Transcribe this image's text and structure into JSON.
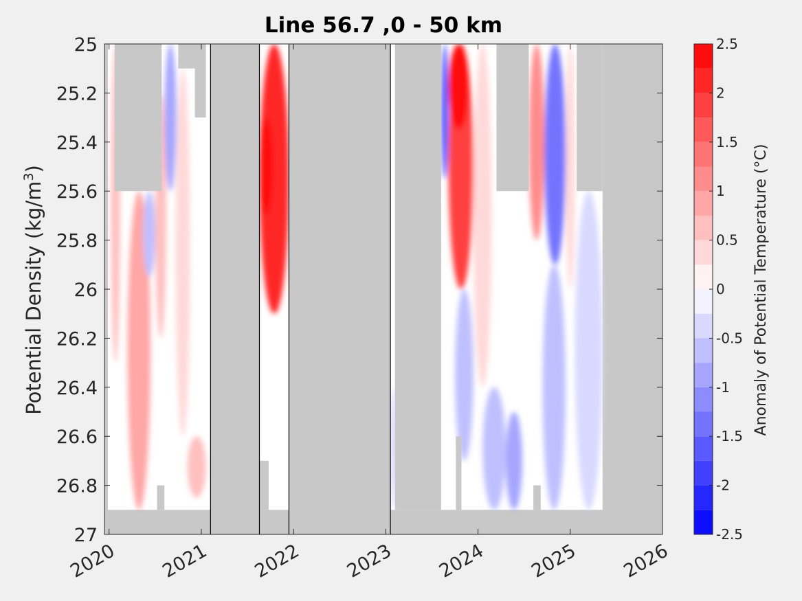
{
  "chart_data": {
    "type": "heatmap",
    "title": "Line 56.7 ,0 - 50 km",
    "ylabel": "Potential Density (kg/m",
    "ylabel_superscript": "3",
    "ylabel_close": ")",
    "xlim": [
      2019.95,
      2026.0
    ],
    "ylim": [
      25.0,
      27.0
    ],
    "y_reversed": true,
    "x_ticks": [
      2020,
      2021,
      2022,
      2023,
      2024,
      2025,
      2026
    ],
    "x_tick_labels": [
      "2020",
      "2021",
      "2022",
      "2023",
      "2024",
      "2025",
      "2026"
    ],
    "y_ticks": [
      25,
      25.2,
      25.4,
      25.6,
      25.8,
      26,
      26.2,
      26.4,
      26.6,
      26.8,
      27
    ],
    "y_tick_labels": [
      "25",
      "25.2",
      "25.4",
      "25.6",
      "25.8",
      "26",
      "26.2",
      "26.4",
      "26.6",
      "26.8",
      "27"
    ],
    "colorbar": {
      "label": "Anomaly of Potential Temperature (°C)",
      "range": [
        -2.5,
        2.5
      ],
      "levels": 20,
      "ticks": [
        -2.5,
        -2,
        -1.5,
        -1,
        -0.5,
        0,
        0.5,
        1,
        1.5,
        2,
        2.5
      ],
      "tick_labels": [
        "-2.5",
        "-2",
        "-1.5",
        "-1",
        "-0.5",
        "0",
        "0.5",
        "1",
        "1.5",
        "2",
        "2.5"
      ],
      "low_color": "#0000ff",
      "mid_color": "#ffffff",
      "high_color": "#ff0000"
    },
    "no_data_color": "#c8c8c8",
    "plot_background": "#ffffff",
    "no_data_periods": [
      [
        2021.1,
        2021.63
      ],
      [
        2021.95,
        2023.05
      ]
    ],
    "survey_lines": [
      2021.1,
      2021.63,
      2021.95,
      2023.05
    ],
    "anomaly_features": [
      {
        "x0": 2020.02,
        "x1": 2020.12,
        "y0": 25.0,
        "y1": 26.3,
        "value": 0.7
      },
      {
        "x0": 2020.2,
        "x1": 2020.45,
        "y0": 25.6,
        "y1": 26.9,
        "value": 0.8
      },
      {
        "x0": 2020.37,
        "x1": 2020.5,
        "y0": 25.6,
        "y1": 25.95,
        "value": -0.6
      },
      {
        "x0": 2020.5,
        "x1": 2020.62,
        "y0": 25.2,
        "y1": 26.2,
        "value": 0.5
      },
      {
        "x0": 2020.6,
        "x1": 2020.73,
        "y0": 25.0,
        "y1": 25.6,
        "value": -0.9
      },
      {
        "x0": 2020.72,
        "x1": 2020.88,
        "y0": 25.1,
        "y1": 26.6,
        "value": 0.4
      },
      {
        "x0": 2020.85,
        "x1": 2021.05,
        "y0": 26.6,
        "y1": 26.85,
        "value": 0.6
      },
      {
        "x0": 2021.63,
        "x1": 2021.95,
        "y0": 25.0,
        "y1": 26.1,
        "value": 2.0
      },
      {
        "x0": 2021.63,
        "x1": 2021.78,
        "y0": 25.3,
        "y1": 25.7,
        "value": 2.4
      },
      {
        "x0": 2023.05,
        "x1": 2023.12,
        "y0": 26.4,
        "y1": 26.9,
        "value": -0.5
      },
      {
        "x0": 2023.6,
        "x1": 2023.68,
        "y0": 25.0,
        "y1": 25.55,
        "value": -1.6
      },
      {
        "x0": 2023.68,
        "x1": 2023.95,
        "y0": 25.0,
        "y1": 26.0,
        "value": 1.9
      },
      {
        "x0": 2023.68,
        "x1": 2023.9,
        "y0": 25.0,
        "y1": 25.35,
        "value": 2.4
      },
      {
        "x0": 2023.75,
        "x1": 2023.95,
        "y0": 26.0,
        "y1": 26.7,
        "value": -0.6
      },
      {
        "x0": 2023.95,
        "x1": 2024.15,
        "y0": 25.0,
        "y1": 26.4,
        "value": 0.4
      },
      {
        "x0": 2024.05,
        "x1": 2024.3,
        "y0": 26.4,
        "y1": 26.9,
        "value": -0.6
      },
      {
        "x0": 2024.3,
        "x1": 2024.48,
        "y0": 26.5,
        "y1": 26.9,
        "value": -1.0
      },
      {
        "x0": 2024.55,
        "x1": 2024.72,
        "y0": 25.0,
        "y1": 25.8,
        "value": 1.0
      },
      {
        "x0": 2024.72,
        "x1": 2024.95,
        "y0": 25.0,
        "y1": 25.9,
        "value": -1.3
      },
      {
        "x0": 2024.7,
        "x1": 2024.95,
        "y0": 25.9,
        "y1": 26.9,
        "value": -0.6
      },
      {
        "x0": 2024.95,
        "x1": 2025.05,
        "y0": 25.0,
        "y1": 26.0,
        "value": 0.4
      },
      {
        "x0": 2025.05,
        "x1": 2025.35,
        "y0": 25.6,
        "y1": 26.9,
        "value": -0.5
      }
    ],
    "no_data_regions": [
      {
        "x0": 2020.06,
        "x1": 2020.57,
        "y0": 25.0,
        "y1": 25.6
      },
      {
        "x0": 2020.75,
        "x1": 2020.98,
        "y0": 25.0,
        "y1": 25.1
      },
      {
        "x0": 2020.93,
        "x1": 2021.05,
        "y0": 25.0,
        "y1": 25.3
      },
      {
        "x0": 2023.1,
        "x1": 2023.6,
        "y0": 25.0,
        "y1": 26.9
      },
      {
        "x0": 2024.2,
        "x1": 2024.55,
        "y0": 25.0,
        "y1": 25.6
      },
      {
        "x0": 2025.07,
        "x1": 2025.35,
        "y0": 25.0,
        "y1": 25.6
      },
      {
        "x0": 2023.76,
        "x1": 2023.82,
        "y0": 26.6,
        "y1": 26.9
      },
      {
        "x0": 2024.6,
        "x1": 2024.68,
        "y0": 26.8,
        "y1": 26.9
      },
      {
        "x0": 2020.52,
        "x1": 2020.6,
        "y0": 26.8,
        "y1": 26.9
      },
      {
        "x0": 2021.63,
        "x1": 2021.73,
        "y0": 26.7,
        "y1": 26.9
      }
    ],
    "data_extent": {
      "bottom_density": 26.9,
      "end_year": 2025.35
    }
  }
}
